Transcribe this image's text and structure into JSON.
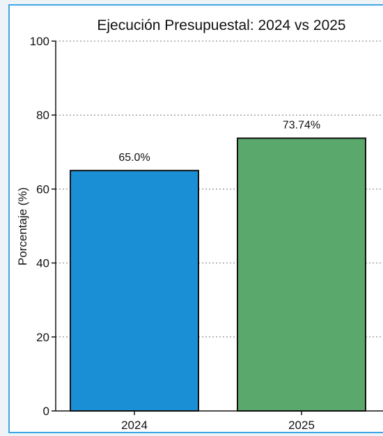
{
  "chart_data": {
    "type": "bar",
    "title": "Ejecución Presupuestal: 2024 vs 2025",
    "xlabel": "",
    "ylabel": "Porcentaje (%)",
    "ylim": [
      0,
      100
    ],
    "yticks": [
      "0",
      "20",
      "40",
      "60",
      "80",
      "100"
    ],
    "grid": true,
    "categories": [
      "2024",
      "2025"
    ],
    "values": [
      65.0,
      73.74
    ],
    "data_labels": [
      "65.0%",
      "73.74%"
    ],
    "colors": [
      "#1b8fd6",
      "#5aa86b"
    ]
  }
}
